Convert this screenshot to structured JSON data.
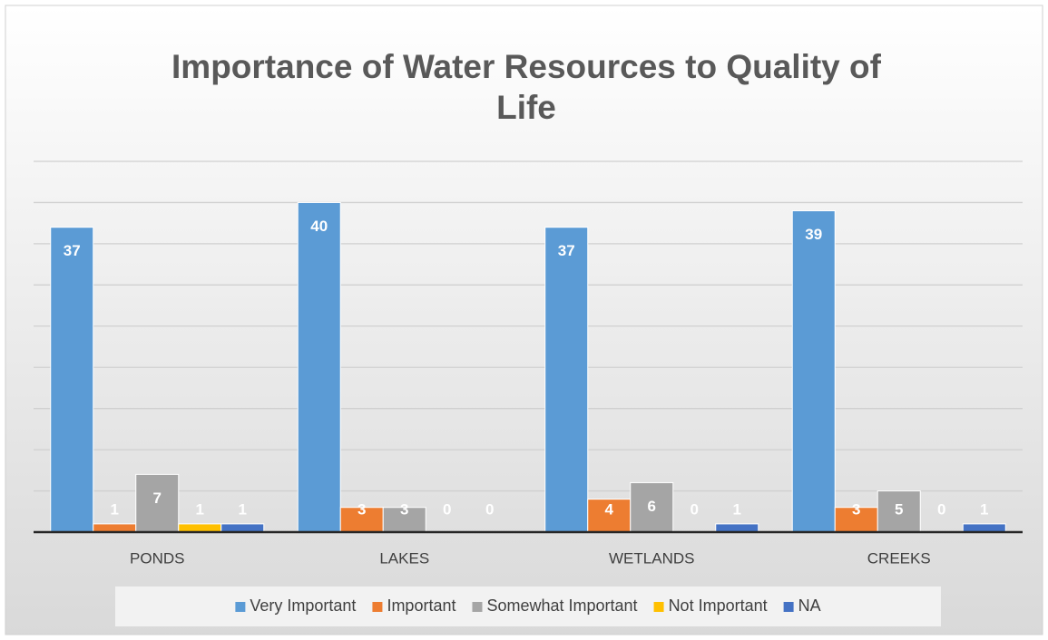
{
  "chart_data": {
    "type": "bar",
    "title": [
      "Importance of Water Resources to Quality of",
      "Life"
    ],
    "categories": [
      "PONDS",
      "LAKES",
      "WETLANDS",
      "CREEKS"
    ],
    "series": [
      {
        "name": "Very Important",
        "color": "#5b9bd5",
        "values": [
          37,
          40,
          37,
          39
        ]
      },
      {
        "name": "Important",
        "color": "#ed7d31",
        "values": [
          1,
          3,
          4,
          3
        ]
      },
      {
        "name": "Somewhat Important",
        "color": "#a5a5a5",
        "values": [
          7,
          3,
          6,
          5
        ]
      },
      {
        "name": "Not Important",
        "color": "#ffc000",
        "values": [
          1,
          0,
          0,
          0
        ]
      },
      {
        "name": "NA",
        "color": "#4472c4",
        "values": [
          1,
          0,
          1,
          1
        ]
      }
    ],
    "ylim": [
      0,
      45
    ],
    "yticks": [
      0,
      5,
      10,
      15,
      20,
      25,
      30,
      35,
      40,
      45
    ],
    "grid": true,
    "legend": "bottom"
  }
}
